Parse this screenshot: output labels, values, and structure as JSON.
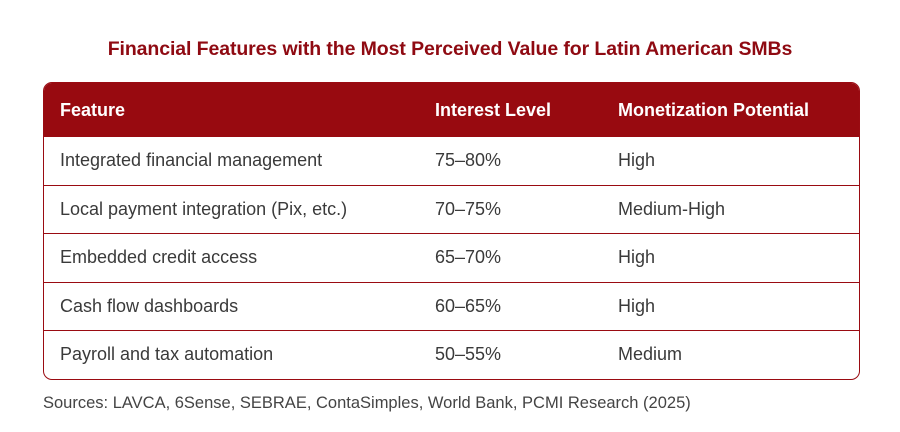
{
  "title": "Financial Features with the Most Perceived Value for Latin American SMBs",
  "table": {
    "headers": [
      "Feature",
      "Interest Level",
      "Monetization Potential"
    ],
    "rows": [
      [
        "Integrated financial management",
        "75–80%",
        "High"
      ],
      [
        "Local payment integration (Pix, etc.)",
        "70–75%",
        "Medium-High"
      ],
      [
        "Embedded credit access",
        "65–70%",
        "High"
      ],
      [
        "Cash flow dashboards",
        "60–65%",
        "High"
      ],
      [
        "Payroll and tax automation",
        "50–55%",
        "Medium"
      ]
    ]
  },
  "sources": "Sources: LAVCA, 6Sense, SEBRAE, ContaSimples, World Bank, PCMI Research (2025)",
  "colors": {
    "accent": "#980a10",
    "title": "#8f0a12"
  }
}
